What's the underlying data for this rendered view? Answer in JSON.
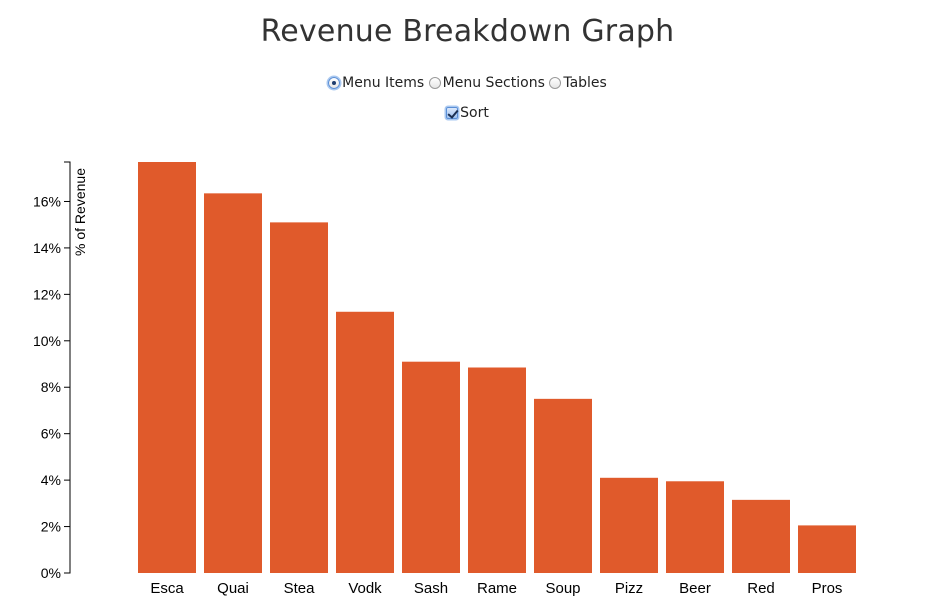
{
  "title": "Revenue Breakdown Graph",
  "controls": {
    "radios": [
      {
        "label": "Menu Items",
        "checked": true
      },
      {
        "label": "Menu Sections",
        "checked": false
      },
      {
        "label": "Tables",
        "checked": false
      }
    ],
    "sort": {
      "label": "Sort",
      "checked": true
    }
  },
  "chart_data": {
    "type": "bar",
    "title": "Revenue Breakdown Graph",
    "xlabel": "",
    "ylabel": "% of Revenue",
    "categories": [
      "Esca",
      "Quai",
      "Stea",
      "Vodk",
      "Sash",
      "Rame",
      "Soup",
      "Pizz",
      "Beer",
      "Red",
      "Pros"
    ],
    "values": [
      17.7,
      16.35,
      15.1,
      11.25,
      9.1,
      8.85,
      7.5,
      4.1,
      3.95,
      3.15,
      2.05
    ],
    "ylim": [
      0,
      17.7
    ],
    "yticks": [
      0,
      2,
      4,
      6,
      8,
      10,
      12,
      14,
      16
    ],
    "ytick_labels": [
      "0%",
      "2%",
      "4%",
      "6%",
      "8%",
      "10%",
      "12%",
      "14%",
      "16%"
    ],
    "bar_color": "#e05a2b",
    "grid": false
  }
}
